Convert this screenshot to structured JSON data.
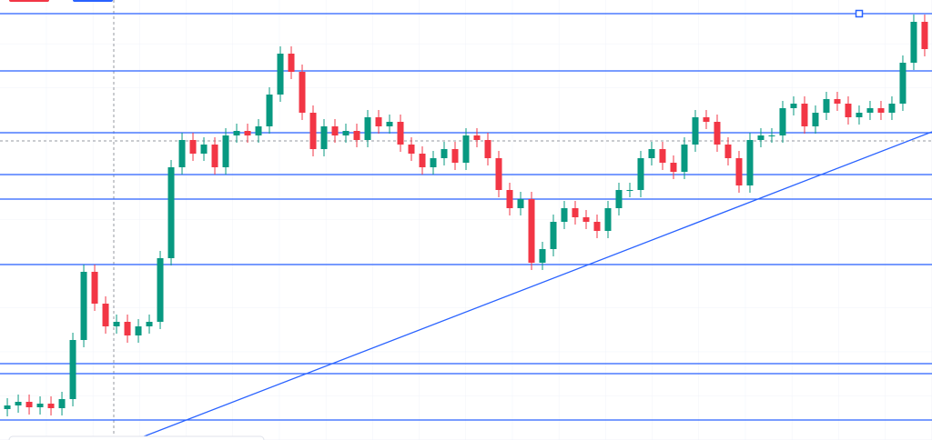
{
  "chart_data": {
    "type": "candlestick",
    "xlim": [
      -0.67,
      84.67
    ],
    "ylim": [
      0,
      484
    ],
    "up_color": "#089981",
    "down_color": "#f23645",
    "open": [
      34,
      38,
      42,
      36,
      40,
      35,
      45,
      110,
      185,
      150,
      125,
      130,
      115,
      125,
      130,
      200,
      300,
      330,
      315,
      325,
      300,
      335,
      340,
      335,
      345,
      380,
      425,
      405,
      360,
      320,
      345,
      335,
      340,
      330,
      355,
      345,
      350,
      325,
      315,
      300,
      310,
      320,
      305,
      335,
      330,
      310,
      275,
      255,
      265,
      195,
      210,
      240,
      255,
      245,
      240,
      230,
      255,
      275,
      275,
      310,
      320,
      305,
      295,
      325,
      355,
      350,
      325,
      310,
      280,
      330,
      335,
      335,
      365,
      370,
      345,
      360,
      375,
      370,
      355,
      360,
      365,
      360,
      370,
      415,
      460
    ],
    "high": [
      46,
      50,
      50,
      48,
      48,
      53,
      118,
      193,
      193,
      158,
      138,
      138,
      133,
      138,
      208,
      308,
      338,
      338,
      333,
      333,
      343,
      348,
      348,
      353,
      388,
      433,
      433,
      413,
      368,
      353,
      353,
      348,
      348,
      363,
      363,
      358,
      358,
      333,
      323,
      318,
      328,
      328,
      343,
      343,
      338,
      318,
      283,
      273,
      273,
      218,
      248,
      263,
      263,
      253,
      248,
      263,
      283,
      283,
      318,
      328,
      328,
      313,
      333,
      363,
      363,
      358,
      333,
      318,
      338,
      343,
      343,
      373,
      378,
      378,
      368,
      383,
      383,
      378,
      368,
      373,
      373,
      378,
      423,
      468,
      468
    ],
    "low": [
      26,
      30,
      28,
      28,
      27,
      27,
      37,
      102,
      142,
      117,
      117,
      107,
      107,
      117,
      122,
      192,
      292,
      307,
      307,
      292,
      292,
      327,
      327,
      327,
      337,
      372,
      397,
      352,
      312,
      312,
      327,
      327,
      322,
      322,
      337,
      337,
      317,
      307,
      292,
      292,
      302,
      297,
      297,
      322,
      302,
      267,
      247,
      247,
      187,
      187,
      202,
      232,
      237,
      232,
      222,
      222,
      247,
      267,
      267,
      302,
      297,
      287,
      287,
      317,
      342,
      317,
      302,
      272,
      272,
      322,
      327,
      327,
      357,
      337,
      337,
      352,
      362,
      347,
      347,
      352,
      352,
      352,
      362,
      407,
      422
    ],
    "close": [
      38,
      42,
      36,
      40,
      35,
      45,
      110,
      185,
      150,
      125,
      130,
      115,
      125,
      130,
      200,
      300,
      330,
      315,
      325,
      300,
      335,
      340,
      335,
      345,
      380,
      425,
      405,
      360,
      320,
      345,
      335,
      340,
      330,
      355,
      345,
      350,
      325,
      315,
      300,
      310,
      320,
      305,
      335,
      330,
      310,
      275,
      255,
      265,
      195,
      210,
      240,
      255,
      245,
      240,
      230,
      255,
      275,
      275,
      310,
      320,
      305,
      295,
      325,
      355,
      350,
      325,
      310,
      280,
      330,
      335,
      335,
      365,
      370,
      345,
      360,
      375,
      370,
      355,
      360,
      365,
      360,
      370,
      415,
      460,
      430
    ],
    "levels": {
      "color": "#2962ff",
      "values": [
        469,
        406,
        338,
        292,
        265,
        193,
        84,
        73,
        22
      ]
    },
    "trendline": {
      "color": "#2962ff",
      "x": [
        11.66,
        84.67
      ],
      "values": [
        0,
        339
      ]
    }
  }
}
